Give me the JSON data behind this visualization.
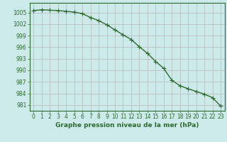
{
  "x": [
    0,
    1,
    2,
    3,
    4,
    5,
    6,
    7,
    8,
    9,
    10,
    11,
    12,
    13,
    14,
    15,
    16,
    17,
    18,
    19,
    20,
    21,
    22,
    23
  ],
  "y": [
    1005.5,
    1005.7,
    1005.6,
    1005.5,
    1005.3,
    1005.1,
    1004.7,
    1003.7,
    1002.9,
    1001.8,
    1000.5,
    999.2,
    998.0,
    996.1,
    994.4,
    992.3,
    990.5,
    987.4,
    986.0,
    985.2,
    984.5,
    983.8,
    982.9,
    980.7
  ],
  "line_color": "#2d6a2d",
  "marker_color": "#2d6a2d",
  "bg_color": "#cceaea",
  "grid_color_teal": "#aacfcf",
  "grid_color_pink": "#d4aaaa",
  "border_color": "#2d6a2d",
  "xlabel": "Graphe pression niveau de la mer (hPa)",
  "yticks": [
    981,
    984,
    987,
    990,
    993,
    996,
    999,
    1002,
    1005
  ],
  "xticks": [
    0,
    1,
    2,
    3,
    4,
    5,
    6,
    7,
    8,
    9,
    10,
    11,
    12,
    13,
    14,
    15,
    16,
    17,
    18,
    19,
    20,
    21,
    22,
    23
  ],
  "ylim": [
    979.5,
    1007.5
  ],
  "xlim": [
    -0.5,
    23.5
  ],
  "xlabel_fontsize": 6.5,
  "tick_fontsize": 5.5,
  "marker_size": 2.5,
  "line_width": 1.0
}
